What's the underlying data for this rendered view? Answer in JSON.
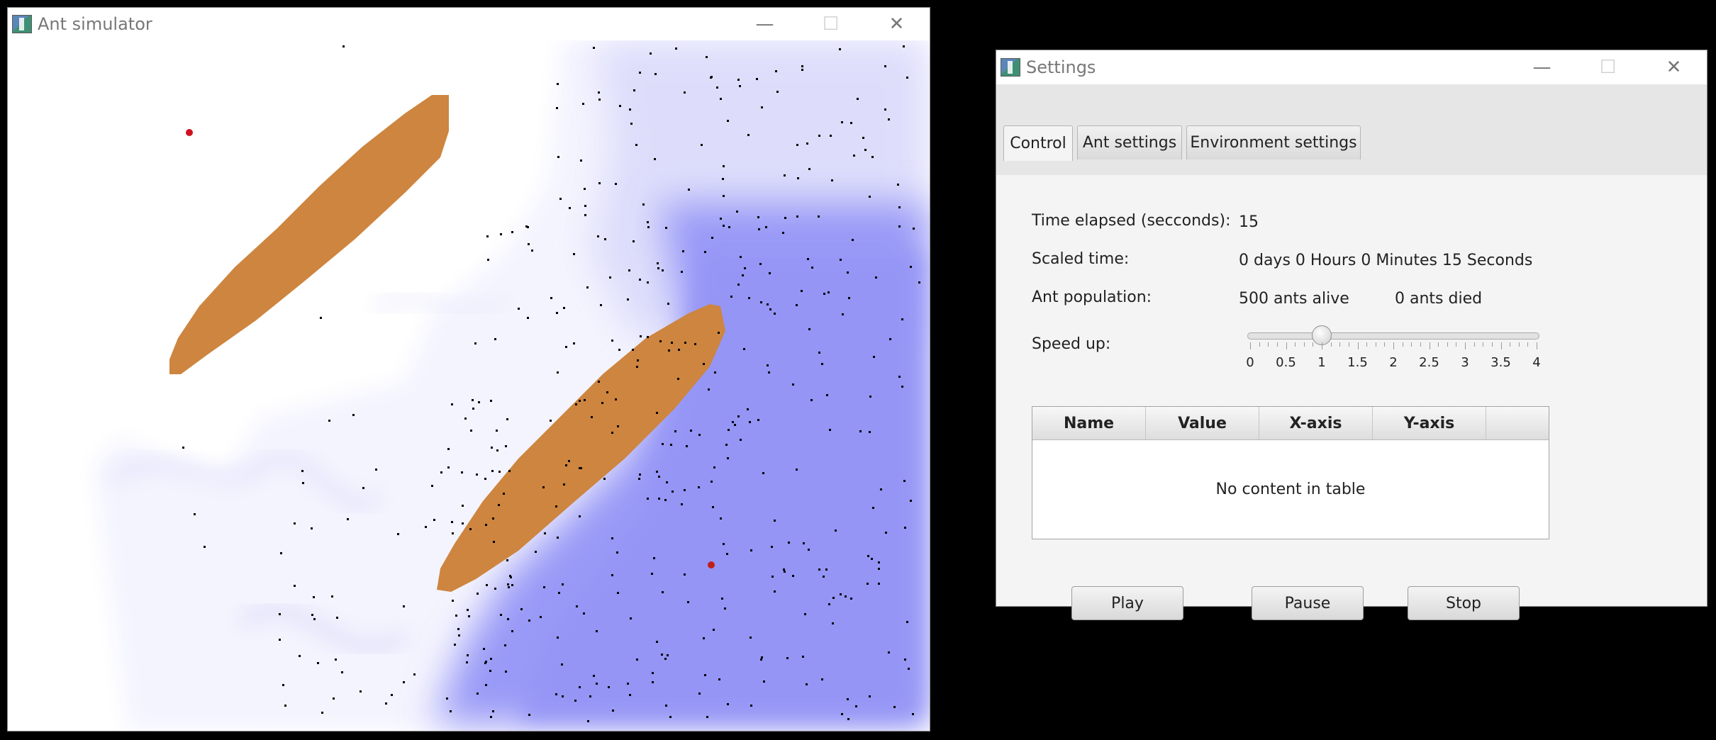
{
  "sim_window": {
    "title": "Ant simulator",
    "icon": "app-icon",
    "controls": {
      "minimize": "—",
      "maximize": "☐",
      "close": "✕"
    },
    "colors": {
      "food": "#cd853f",
      "pheromone": "#9898f8",
      "ant": "#000000",
      "nest_marker": "#d01020"
    }
  },
  "settings_window": {
    "title": "Settings",
    "icon": "app-icon",
    "controls": {
      "minimize": "—",
      "maximize": "☐",
      "close": "✕"
    },
    "tabs": [
      {
        "label": "Control",
        "active": true
      },
      {
        "label": "Ant settings",
        "active": false
      },
      {
        "label": "Environment settings",
        "active": false
      }
    ],
    "control": {
      "time_label": "Time elapsed (secconds):",
      "time_value": "15",
      "scaled_label": "Scaled time:",
      "scaled_value": "0 days 0 Hours 0 Minutes 15 Seconds",
      "population_label": "Ant population:",
      "alive_value": "500 ants alive",
      "died_value": "0 ants died",
      "speed_label": "Speed up:",
      "speed": {
        "min": 0,
        "max": 4,
        "value": 1,
        "ticks": [
          "0",
          "0.5",
          "1",
          "1.5",
          "2",
          "2.5",
          "3",
          "3.5",
          "4"
        ]
      },
      "table": {
        "columns": [
          "Name",
          "Value",
          "X-axis",
          "Y-axis"
        ],
        "placeholder": "No content in table"
      },
      "buttons": {
        "play": "Play",
        "pause": "Pause",
        "stop": "Stop"
      }
    }
  }
}
